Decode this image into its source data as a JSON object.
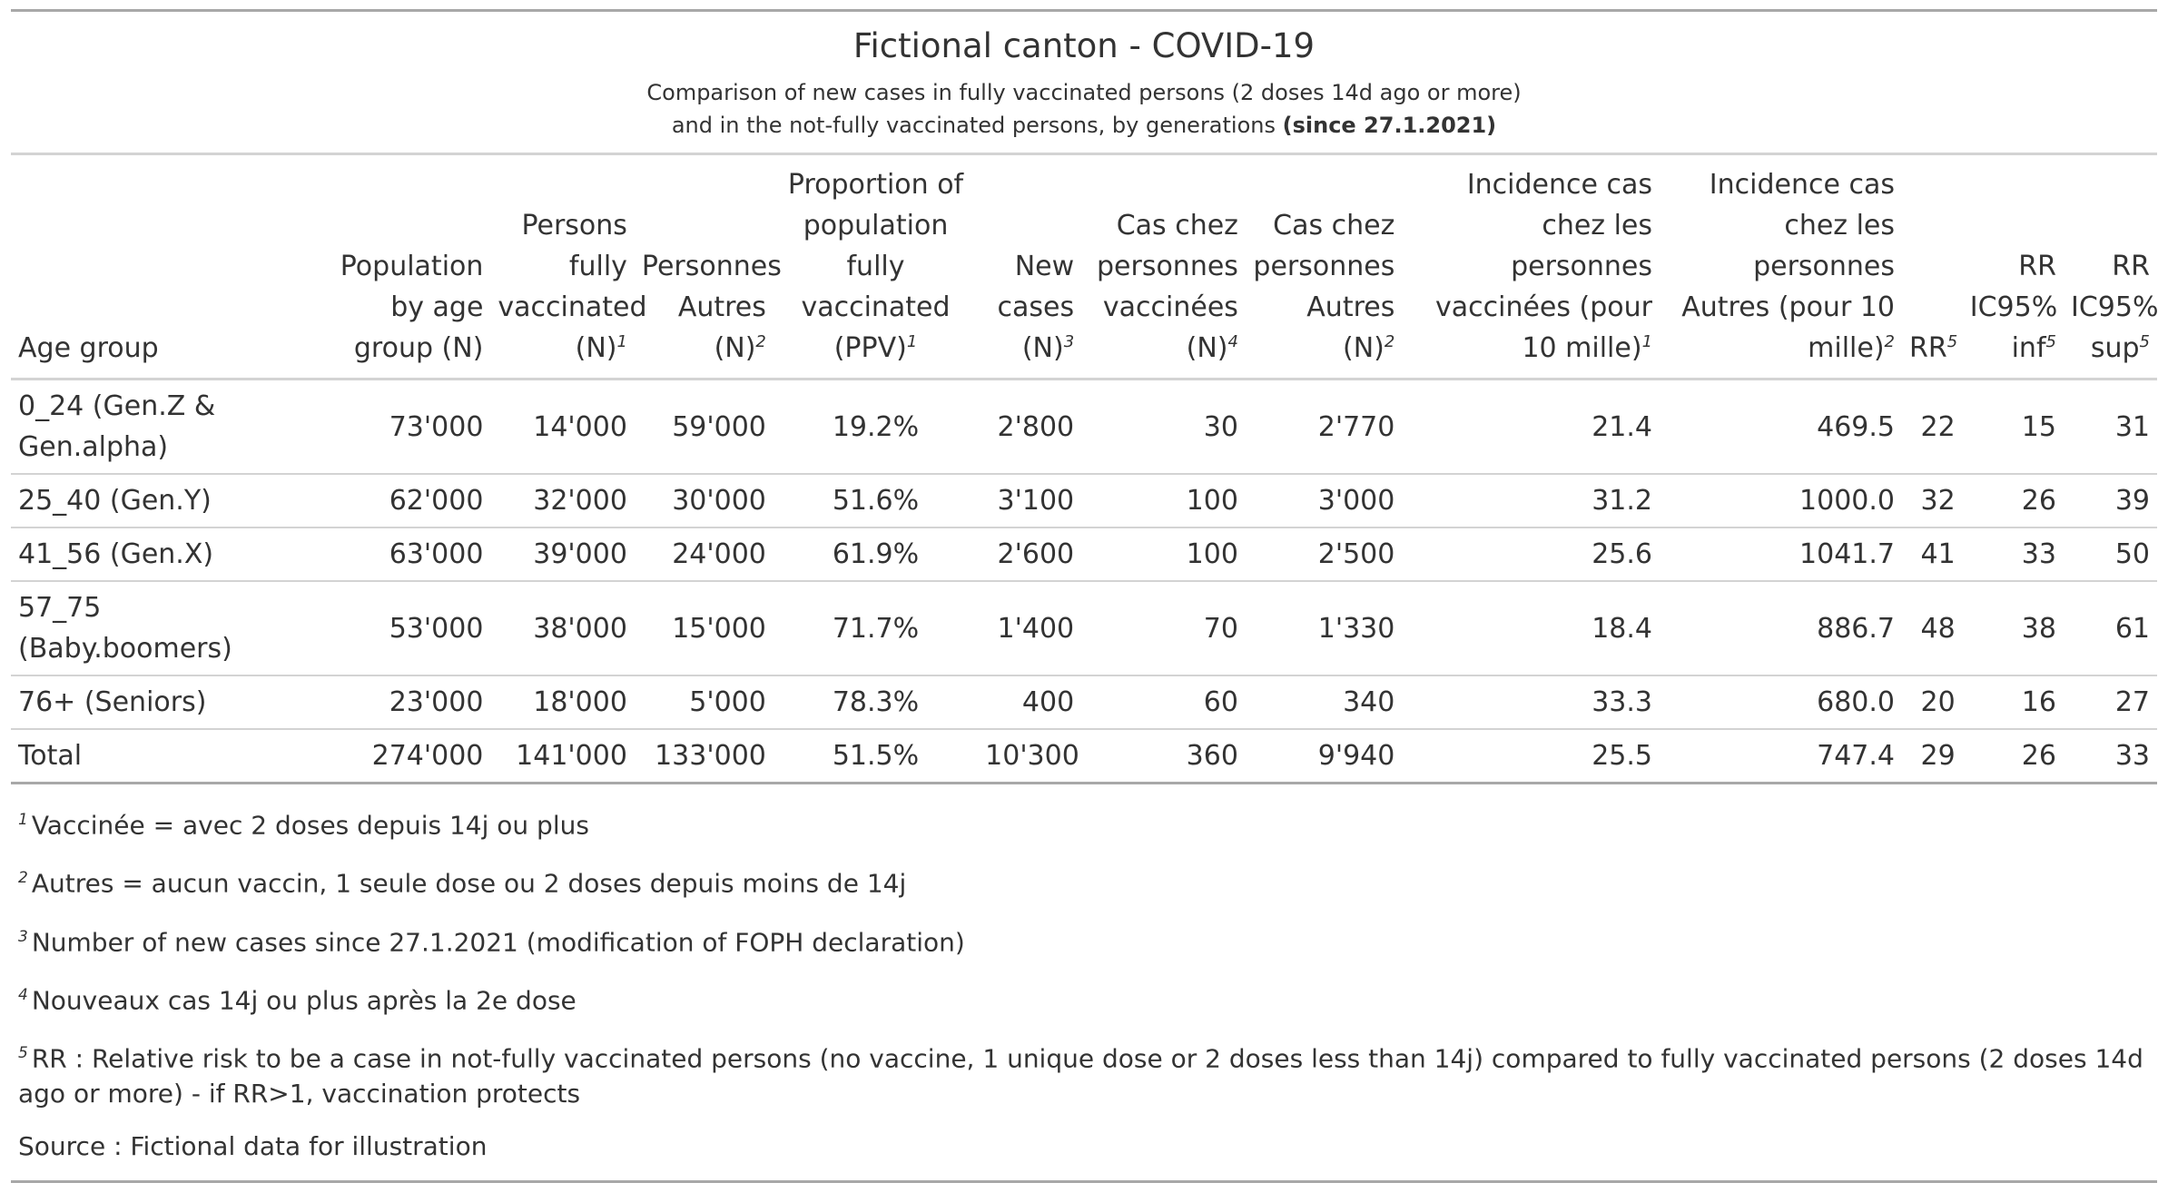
{
  "title": "Fictional canton - COVID-19",
  "subtitle_line1": "Comparison of new cases in fully vaccinated persons (2 doses 14d ago or more)",
  "subtitle_line2_prefix": "and in the not-fully vaccinated persons, by generations ",
  "subtitle_line2_bold": "(since 27.1.2021)",
  "columns": [
    {
      "label": "Age group",
      "fn": ""
    },
    {
      "label": "Population by age group (N)",
      "fn": ""
    },
    {
      "label": "Persons fully vaccinated (N)",
      "fn": "1"
    },
    {
      "label": "Personnes Autres (N)",
      "fn": "2"
    },
    {
      "label": "Proportion of population fully vaccinated (PPV)",
      "fn": "1"
    },
    {
      "label": "New cases (N)",
      "fn": "3"
    },
    {
      "label": "Cas chez personnes vaccinées (N)",
      "fn": "4"
    },
    {
      "label": "Cas chez personnes Autres (N)",
      "fn": "2"
    },
    {
      "label": "Incidence cas chez les personnes vaccinées (pour 10 mille)",
      "fn": "1"
    },
    {
      "label": "Incidence cas chez les personnes Autres (pour 10 mille)",
      "fn": "2"
    },
    {
      "label": "RR",
      "fn": "5"
    },
    {
      "label": "RR IC95% inf",
      "fn": "5"
    },
    {
      "label": "RR IC95% sup",
      "fn": "5"
    }
  ],
  "rows": [
    {
      "age": "0_24 (Gen.Z & Gen.alpha)",
      "pop": "73'000",
      "vacc": "14'000",
      "autres": "59'000",
      "ppv": "19.2%",
      "new": "2'800",
      "cas_vacc": "30",
      "cas_autres": "2'770",
      "inc_vacc": "21.4",
      "inc_autres": "469.5",
      "rr": "22",
      "rr_inf": "15",
      "rr_sup": "31"
    },
    {
      "age": "25_40 (Gen.Y)",
      "pop": "62'000",
      "vacc": "32'000",
      "autres": "30'000",
      "ppv": "51.6%",
      "new": "3'100",
      "cas_vacc": "100",
      "cas_autres": "3'000",
      "inc_vacc": "31.2",
      "inc_autres": "1000.0",
      "rr": "32",
      "rr_inf": "26",
      "rr_sup": "39"
    },
    {
      "age": "41_56 (Gen.X)",
      "pop": "63'000",
      "vacc": "39'000",
      "autres": "24'000",
      "ppv": "61.9%",
      "new": "2'600",
      "cas_vacc": "100",
      "cas_autres": "2'500",
      "inc_vacc": "25.6",
      "inc_autres": "1041.7",
      "rr": "41",
      "rr_inf": "33",
      "rr_sup": "50"
    },
    {
      "age": "57_75 (Baby.boomers)",
      "pop": "53'000",
      "vacc": "38'000",
      "autres": "15'000",
      "ppv": "71.7%",
      "new": "1'400",
      "cas_vacc": "70",
      "cas_autres": "1'330",
      "inc_vacc": "18.4",
      "inc_autres": "886.7",
      "rr": "48",
      "rr_inf": "38",
      "rr_sup": "61"
    },
    {
      "age": "76+ (Seniors)",
      "pop": "23'000",
      "vacc": "18'000",
      "autres": "5'000",
      "ppv": "78.3%",
      "new": "400",
      "cas_vacc": "60",
      "cas_autres": "340",
      "inc_vacc": "33.3",
      "inc_autres": "680.0",
      "rr": "20",
      "rr_inf": "16",
      "rr_sup": "27"
    },
    {
      "age": "Total",
      "pop": "274'000",
      "vacc": "141'000",
      "autres": "133'000",
      "ppv": "51.5%",
      "new": "10'300",
      "cas_vacc": "360",
      "cas_autres": "9'940",
      "inc_vacc": "25.5",
      "inc_autres": "747.4",
      "rr": "29",
      "rr_inf": "26",
      "rr_sup": "33"
    }
  ],
  "footnotes": [
    {
      "mark": "1",
      "text": "Vaccinée = avec 2 doses depuis 14j ou plus"
    },
    {
      "mark": "2",
      "text": "Autres = aucun vaccin, 1 seule dose ou 2 doses depuis moins de 14j"
    },
    {
      "mark": "3",
      "text": "Number of new cases since 27.1.2021 (modification of FOPH declaration)"
    },
    {
      "mark": "4",
      "text": "Nouveaux cas 14j ou plus après la 2e dose"
    },
    {
      "mark": "5",
      "text": "RR : Relative risk to be a case in not-fully vaccinated persons (no vaccine, 1 unique dose or 2 doses less than 14j) compared to fully vaccinated persons (2 doses 14d ago or more) - if RR>1, vaccination protects"
    }
  ],
  "source": "Source : Fictional data for illustration"
}
